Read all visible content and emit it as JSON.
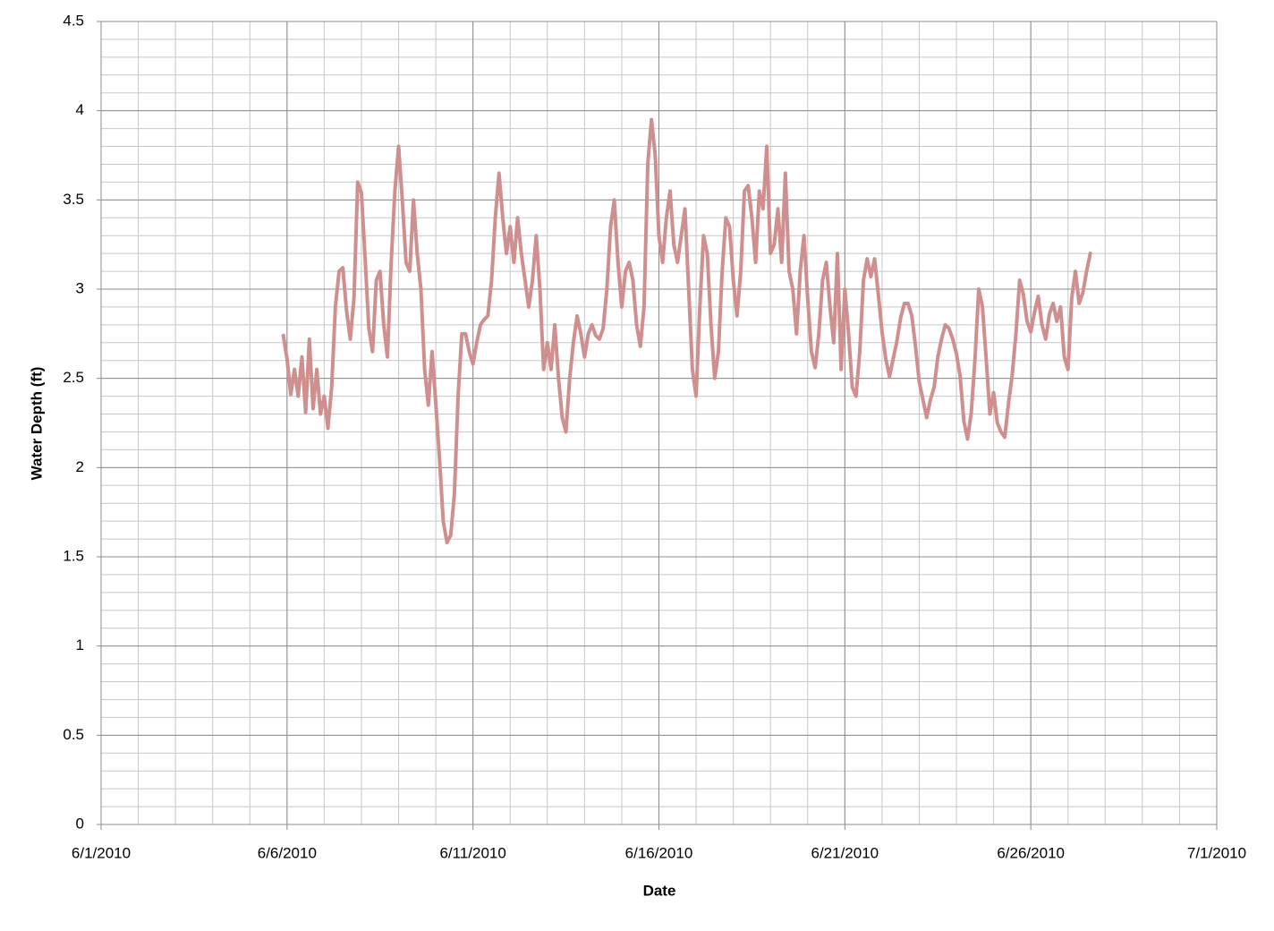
{
  "chart_data": {
    "type": "line",
    "x_label": "Date",
    "y_label": "Water Depth (ft)",
    "color": "#d08f8f",
    "xlim": [
      40330,
      40360
    ],
    "xticks": [
      {
        "value": 40330,
        "label": "6/1/2010"
      },
      {
        "value": 40335,
        "label": "6/6/2010"
      },
      {
        "value": 40340,
        "label": "6/11/2010"
      },
      {
        "value": 40345,
        "label": "6/16/2010"
      },
      {
        "value": 40350,
        "label": "6/21/2010"
      },
      {
        "value": 40355,
        "label": "6/26/2010"
      },
      {
        "value": 40360,
        "label": "7/1/2010"
      }
    ],
    "ylim": [
      0,
      4.5
    ],
    "yticks": [
      0,
      0.5,
      1,
      1.5,
      2,
      2.5,
      3,
      3.5,
      4,
      4.5
    ],
    "grid": true,
    "x_minor_grid": 1,
    "y_minor_grid": 0.1,
    "x": [
      40334.9,
      40335,
      40335.1,
      40335.2,
      40335.3,
      40335.4,
      40335.5,
      40335.6,
      40335.7,
      40335.8,
      40335.9,
      40336,
      40336.1,
      40336.2,
      40336.3,
      40336.4,
      40336.5,
      40336.6,
      40336.7,
      40336.8,
      40336.9,
      40337,
      40337.1,
      40337.2,
      40337.3,
      40337.4,
      40337.5,
      40337.6,
      40337.7,
      40337.8,
      40337.9,
      40338,
      40338.1,
      40338.2,
      40338.3,
      40338.4,
      40338.5,
      40338.6,
      40338.7,
      40338.8,
      40338.9,
      40339,
      40339.1,
      40339.2,
      40339.3,
      40339.4,
      40339.5,
      40339.6,
      40339.7,
      40339.8,
      40339.9,
      40340,
      40340.1,
      40340.2,
      40340.3,
      40340.4,
      40340.5,
      40340.6,
      40340.7,
      40340.8,
      40340.9,
      40341,
      40341.1,
      40341.2,
      40341.3,
      40341.4,
      40341.5,
      40341.6,
      40341.7,
      40341.8,
      40341.9,
      40342,
      40342.1,
      40342.2,
      40342.3,
      40342.4,
      40342.5,
      40342.6,
      40342.7,
      40342.8,
      40342.9,
      40343,
      40343.1,
      40343.2,
      40343.3,
      40343.4,
      40343.5,
      40343.6,
      40343.7,
      40343.8,
      40343.9,
      40344,
      40344.1,
      40344.2,
      40344.3,
      40344.4,
      40344.5,
      40344.6,
      40344.7,
      40344.8,
      40344.9,
      40345,
      40345.1,
      40345.2,
      40345.3,
      40345.4,
      40345.5,
      40345.6,
      40345.7,
      40345.8,
      40345.9,
      40346,
      40346.1,
      40346.2,
      40346.3,
      40346.4,
      40346.5,
      40346.6,
      40346.7,
      40346.8,
      40346.9,
      40347,
      40347.1,
      40347.2,
      40347.3,
      40347.4,
      40347.5,
      40347.6,
      40347.7,
      40347.8,
      40347.9,
      40348,
      40348.1,
      40348.2,
      40348.3,
      40348.4,
      40348.5,
      40348.6,
      40348.7,
      40348.8,
      40348.9,
      40349,
      40349.1,
      40349.2,
      40349.3,
      40349.4,
      40349.5,
      40349.6,
      40349.7,
      40349.8,
      40349.9,
      40350,
      40350.1,
      40350.2,
      40350.3,
      40350.4,
      40350.5,
      40350.6,
      40350.7,
      40350.8,
      40350.9,
      40351,
      40351.1,
      40351.2,
      40351.3,
      40351.4,
      40351.5,
      40351.6,
      40351.7,
      40351.8,
      40351.9,
      40352,
      40352.1,
      40352.2,
      40352.3,
      40352.4,
      40352.5,
      40352.6,
      40352.7,
      40352.8,
      40352.9,
      40353,
      40353.1,
      40353.2,
      40353.3,
      40353.4,
      40353.5,
      40353.6,
      40353.7,
      40353.8,
      40353.9,
      40354,
      40354.1,
      40354.2,
      40354.3,
      40354.4,
      40354.5,
      40354.6,
      40354.7,
      40354.8,
      40354.9,
      40355,
      40355.1,
      40355.2,
      40355.3,
      40355.4,
      40355.5,
      40355.6,
      40355.7,
      40355.8,
      40355.9,
      40356,
      40356.1,
      40356.2,
      40356.3,
      40356.4,
      40356.5,
      40356.6
    ],
    "values": [
      2.74,
      2.61,
      2.41,
      2.55,
      2.4,
      2.62,
      2.31,
      2.72,
      2.33,
      2.55,
      2.3,
      2.4,
      2.22,
      2.45,
      2.9,
      3.1,
      3.12,
      2.88,
      2.72,
      2.95,
      3.6,
      3.54,
      3.17,
      2.78,
      2.65,
      3.05,
      3.1,
      2.8,
      2.62,
      3.15,
      3.55,
      3.8,
      3.5,
      3.15,
      3.1,
      3.5,
      3.2,
      3.0,
      2.55,
      2.35,
      2.65,
      2.36,
      2.05,
      1.7,
      1.58,
      1.62,
      1.85,
      2.4,
      2.75,
      2.75,
      2.65,
      2.58,
      2.7,
      2.8,
      2.83,
      2.85,
      3.05,
      3.4,
      3.65,
      3.4,
      3.2,
      3.35,
      3.15,
      3.4,
      3.2,
      3.05,
      2.9,
      3.05,
      3.3,
      3.0,
      2.55,
      2.7,
      2.55,
      2.8,
      2.5,
      2.28,
      2.2,
      2.5,
      2.7,
      2.85,
      2.75,
      2.62,
      2.75,
      2.8,
      2.74,
      2.72,
      2.78,
      3.0,
      3.35,
      3.5,
      3.15,
      2.9,
      3.1,
      3.15,
      3.05,
      2.8,
      2.68,
      2.9,
      3.7,
      3.95,
      3.75,
      3.3,
      3.15,
      3.4,
      3.55,
      3.25,
      3.15,
      3.3,
      3.45,
      3.0,
      2.55,
      2.4,
      2.9,
      3.3,
      3.2,
      2.8,
      2.5,
      2.65,
      3.1,
      3.4,
      3.35,
      3.05,
      2.85,
      3.1,
      3.55,
      3.58,
      3.4,
      3.15,
      3.55,
      3.45,
      3.8,
      3.2,
      3.25,
      3.45,
      3.15,
      3.65,
      3.1,
      3.0,
      2.75,
      3.1,
      3.3,
      2.95,
      2.65,
      2.56,
      2.75,
      3.05,
      3.15,
      2.9,
      2.7,
      3.2,
      2.55,
      3.0,
      2.75,
      2.45,
      2.4,
      2.65,
      3.05,
      3.17,
      3.07,
      3.17,
      2.97,
      2.76,
      2.61,
      2.51,
      2.61,
      2.71,
      2.84,
      2.92,
      2.92,
      2.85,
      2.68,
      2.48,
      2.38,
      2.28,
      2.38,
      2.45,
      2.62,
      2.72,
      2.8,
      2.78,
      2.72,
      2.64,
      2.51,
      2.26,
      2.16,
      2.31,
      2.61,
      3.0,
      2.9,
      2.61,
      2.3,
      2.42,
      2.25,
      2.2,
      2.17,
      2.36,
      2.52,
      2.75,
      3.05,
      2.97,
      2.82,
      2.76,
      2.87,
      2.96,
      2.8,
      2.72,
      2.86,
      2.92,
      2.82,
      2.9,
      2.62,
      2.55,
      2.95,
      3.1,
      2.92,
      2.98,
      3.1,
      3.2
    ]
  }
}
